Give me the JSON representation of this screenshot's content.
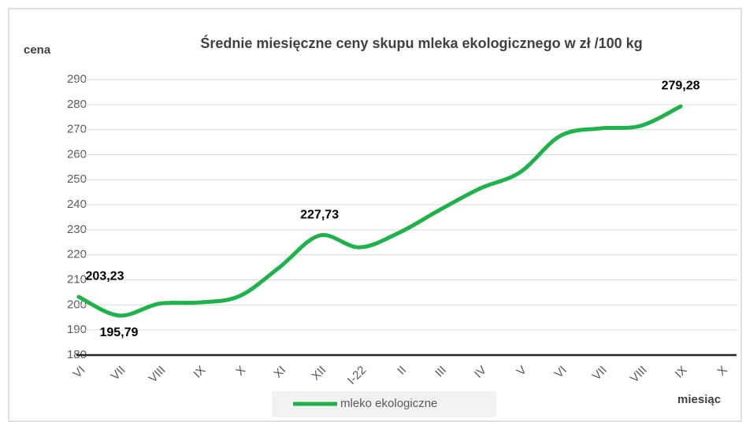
{
  "chart_data": {
    "type": "line",
    "title": "Średnie miesięczne ceny skupu mleka ekologicznego w zł /100 kg",
    "y_label": "cena",
    "x_label": "miesiąc",
    "categories": [
      "VI",
      "VII",
      "VIII",
      "IX",
      "X",
      "XI",
      "XII",
      "I-22",
      "II",
      "III",
      "IV",
      "V",
      "VI",
      "VII",
      "VIII",
      "IX",
      "X"
    ],
    "series": [
      {
        "name": "mleko ekologiczne",
        "color": "#1db34a",
        "values": [
          203.23,
          195.79,
          200.5,
          201,
          203.5,
          215,
          227.73,
          223,
          229,
          238,
          246.5,
          253,
          267.5,
          270.5,
          271.5,
          279.28,
          null
        ],
        "value_labels": [
          "203,23",
          "195,79",
          null,
          null,
          null,
          null,
          "227,73",
          null,
          null,
          null,
          null,
          null,
          null,
          null,
          null,
          "279,28",
          null
        ]
      }
    ],
    "ylim": [
      180,
      290
    ],
    "yticks": [
      180,
      190,
      200,
      210,
      220,
      230,
      240,
      250,
      260,
      270,
      280,
      290
    ],
    "grid": true,
    "legend": "bottom"
  }
}
